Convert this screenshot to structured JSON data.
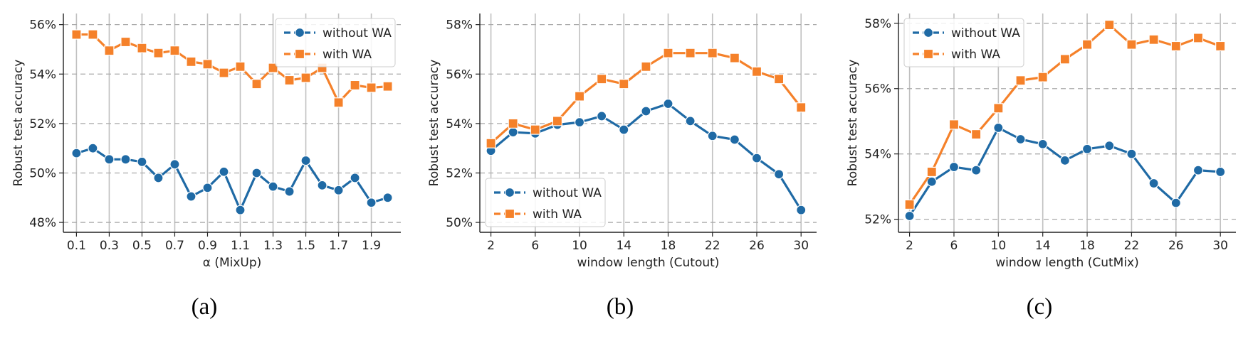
{
  "colors": {
    "without": "#1f6aa5",
    "with": "#f5812a",
    "grid_h": "#aaaaaa",
    "grid_v": "#c0c0c0"
  },
  "chart_data": [
    {
      "type": "line",
      "caption": "(a)",
      "xlabel": "α (MixUp)",
      "ylabel": "Robust test accuracy",
      "x": [
        0.1,
        0.2,
        0.3,
        0.4,
        0.5,
        0.6,
        0.7,
        0.8,
        0.9,
        1.0,
        1.1,
        1.2,
        1.3,
        1.4,
        1.5,
        1.6,
        1.7,
        1.8,
        1.9,
        2.0
      ],
      "xticks": [
        0.1,
        0.3,
        0.5,
        0.7,
        0.9,
        1.1,
        1.3,
        1.5,
        1.7,
        1.9
      ],
      "xtick_labels": [
        "0.1",
        "0.3",
        "0.5",
        "0.7",
        "0.9",
        "1.1",
        "1.3",
        "1.5",
        "1.7",
        "1.9"
      ],
      "xlim": [
        0.02,
        2.08
      ],
      "yticks": [
        48,
        50,
        52,
        54,
        56
      ],
      "ytick_labels": [
        "48%",
        "50%",
        "52%",
        "54%",
        "56%"
      ],
      "ylim": [
        47.6,
        56.45
      ],
      "legend_position": "top-right",
      "series": [
        {
          "name": "without WA",
          "marker": "circle",
          "values": [
            50.8,
            51.0,
            50.55,
            50.55,
            50.45,
            49.8,
            50.35,
            49.05,
            49.4,
            50.05,
            48.5,
            50.0,
            49.45,
            49.25,
            50.5,
            49.5,
            49.3,
            49.8,
            48.8,
            49.0
          ]
        },
        {
          "name": "with WA",
          "marker": "square",
          "values": [
            55.6,
            55.6,
            54.95,
            55.3,
            55.05,
            54.85,
            54.95,
            54.5,
            54.4,
            54.05,
            54.3,
            53.6,
            54.25,
            53.75,
            53.85,
            54.25,
            52.85,
            53.55,
            53.45,
            53.5
          ]
        }
      ]
    },
    {
      "type": "line",
      "caption": "(b)",
      "xlabel": "window length (Cutout)",
      "ylabel": "Robust test accuracy",
      "x": [
        2,
        4,
        6,
        8,
        10,
        12,
        14,
        16,
        18,
        20,
        22,
        24,
        26,
        28,
        30
      ],
      "xticks": [
        2,
        6,
        10,
        14,
        18,
        22,
        26,
        30
      ],
      "xtick_labels": [
        "2",
        "6",
        "10",
        "14",
        "18",
        "22",
        "26",
        "30"
      ],
      "xlim": [
        1.0,
        31.4
      ],
      "yticks": [
        50,
        52,
        54,
        56,
        58
      ],
      "ytick_labels": [
        "50%",
        "52%",
        "54%",
        "56%",
        "58%"
      ],
      "ylim": [
        49.6,
        58.45
      ],
      "legend_position": "bottom-left",
      "series": [
        {
          "name": "without WA",
          "marker": "circle",
          "values": [
            52.9,
            53.65,
            53.6,
            53.95,
            54.05,
            54.3,
            53.75,
            54.5,
            54.8,
            54.1,
            53.5,
            53.35,
            52.6,
            51.95,
            50.5
          ]
        },
        {
          "name": "with WA",
          "marker": "square",
          "values": [
            53.2,
            54.0,
            53.75,
            54.1,
            55.1,
            55.8,
            55.6,
            56.3,
            56.85,
            56.85,
            56.85,
            56.65,
            56.1,
            55.8,
            54.65
          ]
        }
      ]
    },
    {
      "type": "line",
      "caption": "(c)",
      "xlabel": "window length (CutMix)",
      "ylabel": "Robust test accuracy",
      "x": [
        2,
        4,
        6,
        8,
        10,
        12,
        14,
        16,
        18,
        20,
        22,
        24,
        26,
        28,
        30
      ],
      "xticks": [
        2,
        6,
        10,
        14,
        18,
        22,
        26,
        30
      ],
      "xtick_labels": [
        "2",
        "6",
        "10",
        "14",
        "18",
        "22",
        "26",
        "30"
      ],
      "xlim": [
        1.0,
        31.4
      ],
      "yticks": [
        52,
        54,
        56,
        58
      ],
      "ytick_labels": [
        "52%",
        "54%",
        "56%",
        "58%"
      ],
      "ylim": [
        51.6,
        58.3
      ],
      "legend_position": "top-left",
      "series": [
        {
          "name": "without WA",
          "marker": "circle",
          "values": [
            52.1,
            53.15,
            53.6,
            53.5,
            54.8,
            54.45,
            54.3,
            53.8,
            54.15,
            54.25,
            54.0,
            53.1,
            52.5,
            53.5,
            53.45
          ]
        },
        {
          "name": "with WA",
          "marker": "square",
          "values": [
            52.45,
            53.45,
            54.9,
            54.6,
            55.4,
            56.25,
            56.35,
            56.9,
            57.35,
            57.95,
            57.35,
            57.5,
            57.3,
            57.55,
            57.3
          ]
        }
      ]
    }
  ]
}
